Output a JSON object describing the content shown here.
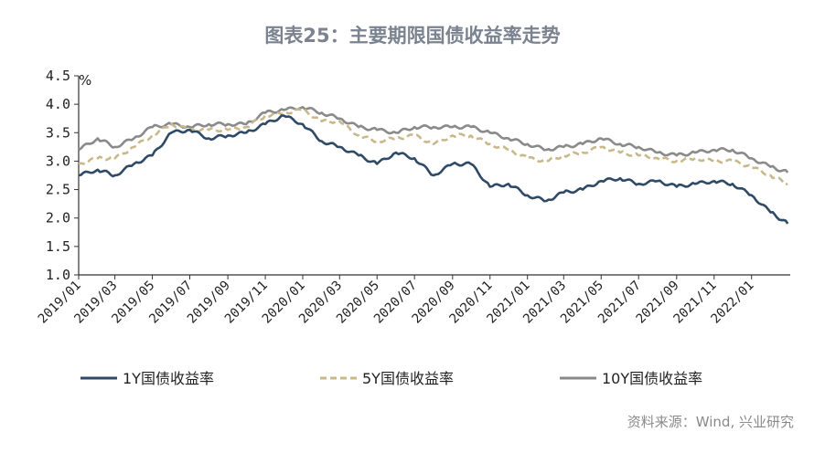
{
  "chart_data": {
    "type": "line",
    "title": "图表25：主要期限国债收益率走势",
    "unit": "%",
    "ylim": [
      1.0,
      4.5
    ],
    "yticks": [
      "1.0",
      "1.5",
      "2.0",
      "2.5",
      "3.0",
      "3.5",
      "4.0",
      "4.5"
    ],
    "xticks": [
      "2019/01",
      "2019/03",
      "2019/05",
      "2019/07",
      "2019/09",
      "2019/11",
      "2020/01",
      "2020/03",
      "2020/05",
      "2020/07",
      "2020/09",
      "2020/11",
      "2021/01",
      "2021/03",
      "2021/05",
      "2021/07",
      "2021/09",
      "2021/11",
      "2022/01"
    ],
    "x": [
      "2019-01-01",
      "2019-02-01",
      "2019-03-01",
      "2019-04-01",
      "2019-05-01",
      "2019-06-01",
      "2019-07-01",
      "2019-08-01",
      "2019-09-01",
      "2019-10-01",
      "2019-11-01",
      "2019-12-01",
      "2020-01-01",
      "2020-02-01",
      "2020-03-01",
      "2020-04-01",
      "2020-05-01",
      "2020-06-01",
      "2020-07-01",
      "2020-08-01",
      "2020-09-01",
      "2020-10-01",
      "2020-11-01",
      "2020-12-01",
      "2021-01-01",
      "2021-02-01",
      "2021-03-01",
      "2021-04-01",
      "2021-05-01",
      "2021-06-01",
      "2021-07-01",
      "2021-08-01",
      "2021-09-01",
      "2021-10-01",
      "2021-11-01",
      "2021-12-01",
      "2022-01-01",
      "2022-02-01",
      "2022-03-01"
    ],
    "series": [
      {
        "name": "1Y国债收益率",
        "color": "#2e4a66",
        "dash": "solid",
        "values": [
          2.75,
          2.85,
          2.75,
          2.95,
          3.1,
          3.5,
          3.55,
          3.4,
          3.45,
          3.5,
          3.65,
          3.8,
          3.65,
          3.35,
          3.25,
          3.1,
          2.95,
          3.15,
          3.05,
          2.75,
          2.95,
          2.95,
          2.55,
          2.6,
          2.4,
          2.3,
          2.45,
          2.5,
          2.65,
          2.7,
          2.6,
          2.65,
          2.55,
          2.6,
          2.65,
          2.6,
          2.4,
          2.1,
          1.9
        ]
      },
      {
        "name": "5Y国债收益率",
        "color": "#c9b88a",
        "dash": "dashed",
        "values": [
          2.95,
          3.05,
          3.05,
          3.25,
          3.45,
          3.65,
          3.55,
          3.55,
          3.55,
          3.6,
          3.8,
          3.85,
          3.9,
          3.7,
          3.7,
          3.45,
          3.35,
          3.4,
          3.45,
          3.3,
          3.45,
          3.45,
          3.3,
          3.2,
          3.05,
          3.0,
          3.1,
          3.15,
          3.25,
          3.15,
          3.1,
          3.05,
          3.0,
          3.05,
          3.0,
          3.0,
          2.9,
          2.75,
          2.6
        ]
      },
      {
        "name": "10Y国债收益率",
        "color": "#8a8a8a",
        "dash": "solid",
        "values": [
          3.2,
          3.4,
          3.25,
          3.4,
          3.6,
          3.65,
          3.6,
          3.65,
          3.65,
          3.65,
          3.85,
          3.9,
          3.95,
          3.85,
          3.75,
          3.6,
          3.55,
          3.5,
          3.6,
          3.6,
          3.6,
          3.6,
          3.5,
          3.4,
          3.3,
          3.2,
          3.25,
          3.3,
          3.4,
          3.3,
          3.25,
          3.15,
          3.1,
          3.15,
          3.2,
          3.2,
          3.05,
          2.9,
          2.8
        ]
      }
    ],
    "legend_position": "bottom",
    "source": "资料来源：Wind, 兴业研究"
  }
}
